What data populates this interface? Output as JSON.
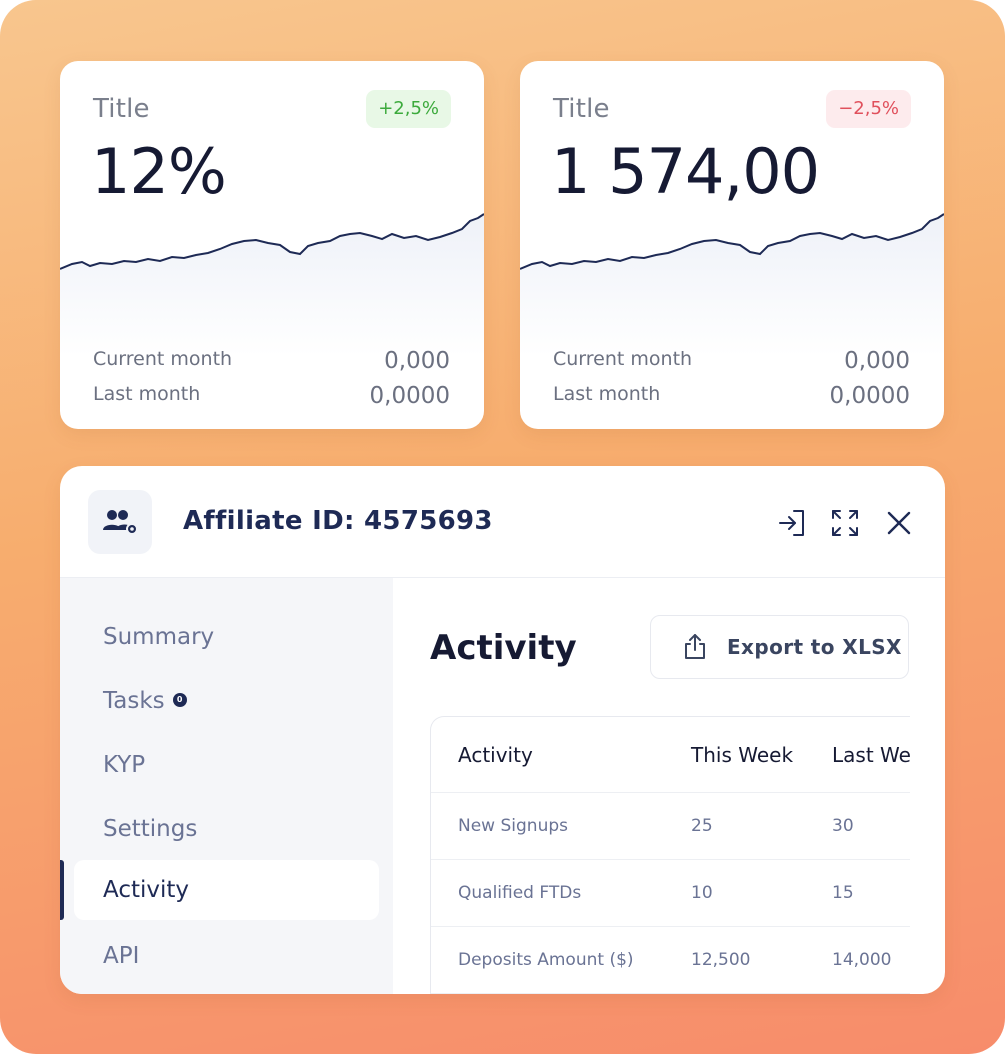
{
  "colors": {
    "navy": "#1e2a55",
    "positive": "#3caa3c",
    "negative": "#e0505c"
  },
  "cards": [
    {
      "title": "Title",
      "value": "12%",
      "badge": "+2,5%",
      "badge_type": "positive",
      "rows": [
        {
          "label": "Current month",
          "value": "0,000"
        },
        {
          "label": "Last month",
          "value": "0,0000"
        }
      ]
    },
    {
      "title": "Title",
      "value": "1 574,00",
      "badge": "−2,5%",
      "badge_type": "negative",
      "rows": [
        {
          "label": "Current month",
          "value": "0,000"
        },
        {
          "label": "Last month",
          "value": "0,0000"
        }
      ]
    }
  ],
  "panel": {
    "header_icon": "users-gear-icon",
    "title": "Affiliate ID: 4575693",
    "actions": [
      "login-icon",
      "fullscreen-icon",
      "close-icon"
    ],
    "nav": [
      {
        "label": "Summary"
      },
      {
        "label": "Tasks",
        "badge": "0"
      },
      {
        "label": "KYP"
      },
      {
        "label": "Settings"
      },
      {
        "label": "Activity",
        "active": true
      },
      {
        "label": "API"
      }
    ],
    "section_title": "Activity",
    "export_label": "Export to XLSX",
    "table": {
      "columns": [
        "Activity",
        "This Week",
        "Last Week"
      ],
      "rows": [
        [
          "New Signups",
          "25",
          "30"
        ],
        [
          "Qualified FTDs",
          "10",
          "15"
        ],
        [
          "Deposits Amount ($)",
          "12,500",
          "14,000"
        ]
      ]
    }
  }
}
